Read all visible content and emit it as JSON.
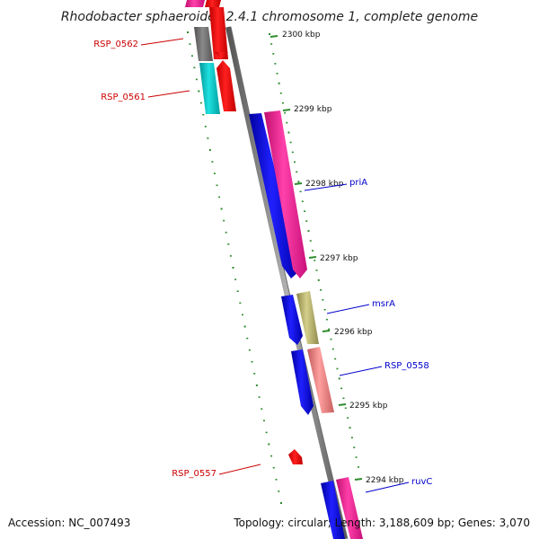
{
  "title": "Rhodobacter sphaeroides 2.4.1 chromosome 1, complete genome",
  "footer": {
    "accession": "Accession: NC_007493",
    "summary": "Topology: circular; Length: 3,188,609 bp; Genes: 3,070"
  },
  "ticks": [
    {
      "label": "2300 kbp"
    },
    {
      "label": "2299 kbp"
    },
    {
      "label": "2298 kbp"
    },
    {
      "label": "2297 kbp"
    },
    {
      "label": "2296 kbp"
    },
    {
      "label": "2295 kbp"
    },
    {
      "label": "2294 kbp"
    }
  ],
  "gene_labels": [
    {
      "text": "RSP_0562",
      "color": "#cc0000"
    },
    {
      "text": "RSP_0561",
      "color": "#cc0000"
    },
    {
      "text": "priA",
      "color": "#0000cc"
    },
    {
      "text": "msrA",
      "color": "#0000cc"
    },
    {
      "text": "RSP_0558",
      "color": "#0000cc"
    },
    {
      "text": "RSP_0557",
      "color": "#cc0000"
    },
    {
      "text": "ruvC",
      "color": "#0000cc"
    }
  ],
  "colors": {
    "backbone": "#888888",
    "tick": "#2e8b2e",
    "blue_gene": "#0000ee",
    "pink_gene": "#ff1493",
    "red_gene": "#ff0000",
    "cyan_gene": "#00c8c8",
    "gray_gene": "#707070",
    "olive_gene": "#bdb76b",
    "salmon_gene": "#f08080"
  }
}
